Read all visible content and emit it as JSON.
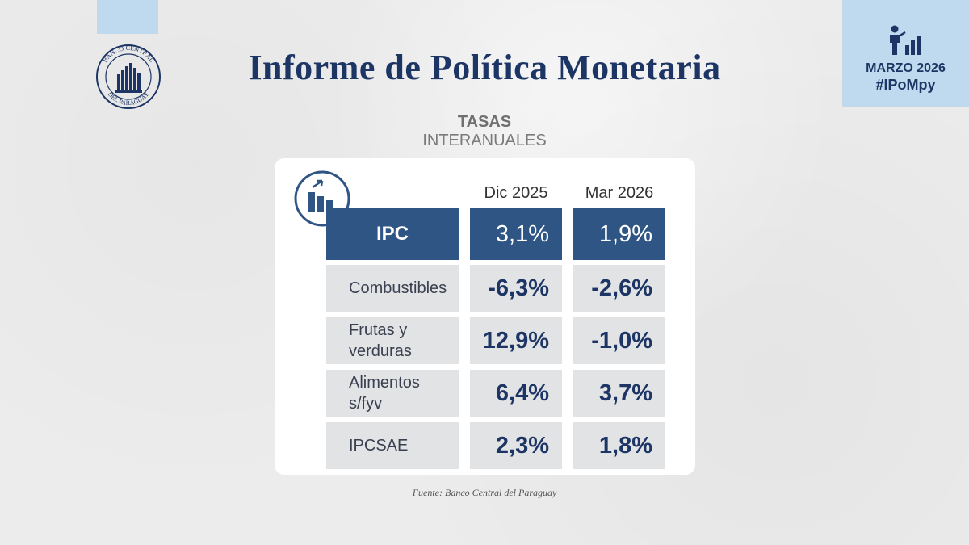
{
  "header": {
    "title": "Informe de Política Monetaria",
    "logo_text_top": "BANCO CENTRAL",
    "logo_text_bottom": "DEL PARAGUAY"
  },
  "badge": {
    "date": "MARZO 2026",
    "hashtag": "#IPoMpy",
    "icon": "person-chart-icon"
  },
  "section": {
    "heading_bold": "TASAS",
    "heading_light": "INTERANUALES"
  },
  "chart_data": {
    "type": "table",
    "columns": [
      "Dic 2025",
      "Mar 2026"
    ],
    "rows": [
      {
        "label": "IPC",
        "values": [
          "3,1%",
          "1,9%"
        ]
      },
      {
        "label": "Combustibles",
        "values": [
          "-6,3%",
          "-2,6%"
        ]
      },
      {
        "label": "Frutas y verduras",
        "values": [
          "12,9%",
          "-1,0%"
        ]
      },
      {
        "label": "Alimentos s/fyv",
        "values": [
          "6,4%",
          "3,7%"
        ]
      },
      {
        "label": "IPCSAE",
        "values": [
          "2,3%",
          "1,8%"
        ]
      }
    ]
  },
  "source": "Fuente: Banco Central del Paraguay",
  "colors": {
    "navy": "#1c3564",
    "highlight": "#2f5585",
    "row_bg": "#e2e3e5",
    "accent_light": "#bfd9ee"
  }
}
